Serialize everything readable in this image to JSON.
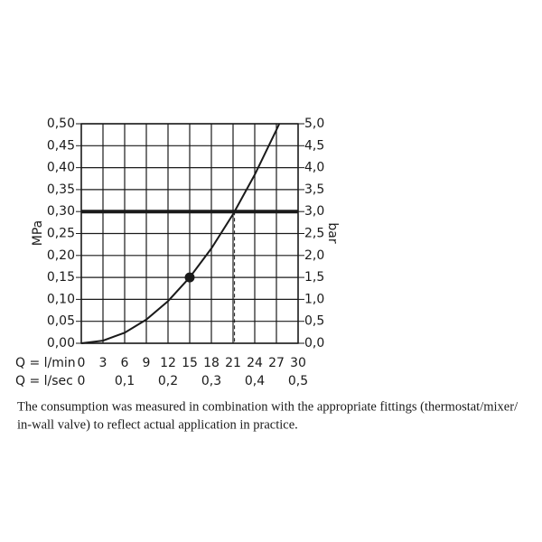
{
  "chart_data": {
    "type": "line",
    "y_label": "MPa",
    "y2_label": "bar",
    "x_label": "Q = l/min",
    "x2_label": "Q = l/sec",
    "x": [
      0,
      3,
      6,
      9,
      12,
      15,
      18,
      21,
      24,
      27,
      27.4
    ],
    "series": [
      {
        "color": "#1a1a1a",
        "values": [
          0,
          0.006,
          0.024,
          0.054,
          0.096,
          0.15,
          0.216,
          0.294,
          0.384,
          0.486,
          0.5
        ]
      }
    ],
    "marker": {
      "x": 15,
      "y": 0.15
    },
    "reference_y": 0.3,
    "reference_x": 21.2,
    "xlim": [
      0,
      30
    ],
    "xticks": [
      0,
      3,
      6,
      9,
      12,
      15,
      18,
      21,
      24,
      27,
      30
    ],
    "x2lim": [
      0,
      0.5
    ],
    "x2ticks": [
      0,
      {
        "value": 0.1,
        "label": "0,1"
      },
      {
        "value": 0.2,
        "label": "0,2"
      },
      {
        "value": 0.3,
        "label": "0,3"
      },
      {
        "value": 0.4,
        "label": "0,4"
      },
      {
        "value": 0.5,
        "label": "0,5"
      }
    ],
    "ylim": [
      0,
      0.5
    ],
    "yticks": [
      {
        "value": 0,
        "label": "0,00"
      },
      {
        "value": 0.05,
        "label": "0,05"
      },
      {
        "value": 0.1,
        "label": "0,10"
      },
      {
        "value": 0.15,
        "label": "0,15"
      },
      {
        "value": 0.2,
        "label": "0,20"
      },
      {
        "value": 0.25,
        "label": "0,25"
      },
      {
        "value": 0.3,
        "label": "0,30"
      },
      {
        "value": 0.35,
        "label": "0,35"
      },
      {
        "value": 0.4,
        "label": "0,40"
      },
      {
        "value": 0.45,
        "label": "0,45"
      },
      {
        "value": 0.5,
        "label": "0,50"
      }
    ],
    "y2lim": [
      0,
      5
    ],
    "y2ticks": [
      {
        "value": 0,
        "label": "0,0"
      },
      {
        "value": 0.5,
        "label": "0,5"
      },
      {
        "value": 1,
        "label": "1,0"
      },
      {
        "value": 1.5,
        "label": "1,5"
      },
      {
        "value": 2,
        "label": "2,0"
      },
      {
        "value": 2.5,
        "label": "2,5"
      },
      {
        "value": 3,
        "label": "3,0"
      },
      {
        "value": 3.5,
        "label": "3,5"
      },
      {
        "value": 4,
        "label": "4,0"
      },
      {
        "value": 4.5,
        "label": "4,5"
      },
      {
        "value": 5,
        "label": "5,0"
      }
    ],
    "grid": true
  },
  "caption": {
    "lines": [
      "The consumption was measured in combination with the appropriate fittings (thermostat/mixer/",
      "in-wall valve) to reflect actual application in practice."
    ]
  }
}
